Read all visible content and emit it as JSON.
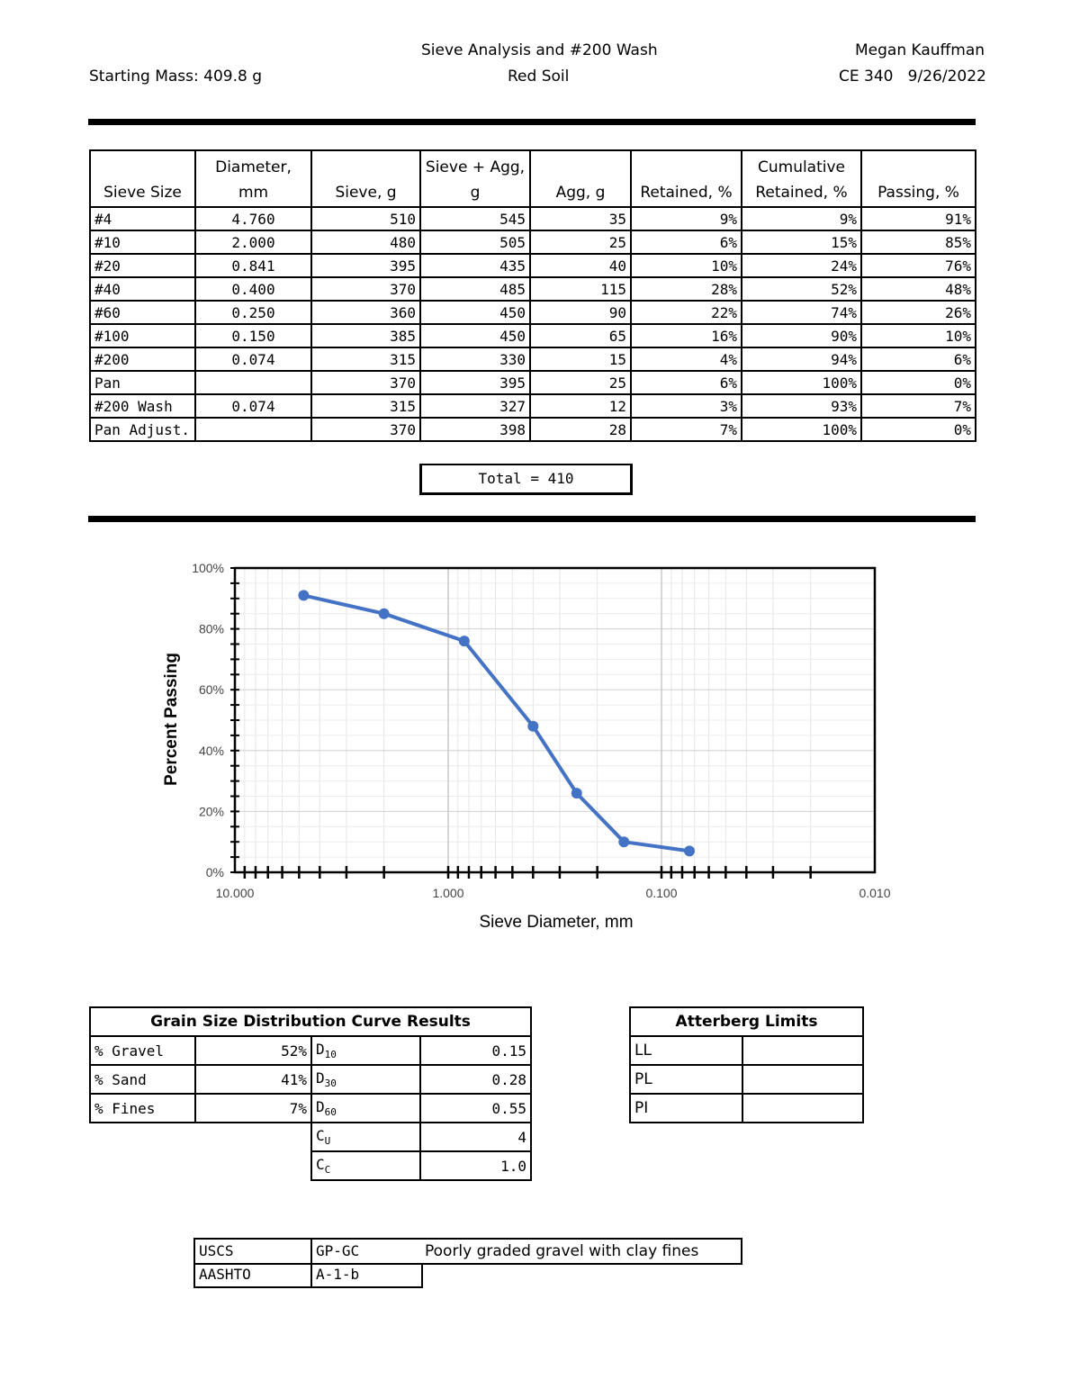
{
  "header": {
    "title_line1": "Sieve Analysis and #200 Wash",
    "title_line2": "Red Soil",
    "author": "Megan Kauffman",
    "course_date": "CE 340   9/26/2022",
    "starting_mass": "Starting Mass: 409.8 g"
  },
  "sieve_table": {
    "headers": {
      "sieve_size": "Sieve Size",
      "diameter_1": "Diameter,",
      "diameter_2": "mm",
      "sieve": "Sieve, g",
      "sieve_agg_1": "Sieve + Agg,",
      "sieve_agg_2": "g",
      "agg": "Agg, g",
      "retained": "Retained, %",
      "cum_1": "Cumulative",
      "cum_2": "Retained, %",
      "passing": "Passing, %"
    },
    "rows": [
      [
        "#4",
        "4.760",
        "510",
        "545",
        "35",
        "9%",
        "9%",
        "91%"
      ],
      [
        "#10",
        "2.000",
        "480",
        "505",
        "25",
        "6%",
        "15%",
        "85%"
      ],
      [
        "#20",
        "0.841",
        "395",
        "435",
        "40",
        "10%",
        "24%",
        "76%"
      ],
      [
        "#40",
        "0.400",
        "370",
        "485",
        "115",
        "28%",
        "52%",
        "48%"
      ],
      [
        "#60",
        "0.250",
        "360",
        "450",
        "90",
        "22%",
        "74%",
        "26%"
      ],
      [
        "#100",
        "0.150",
        "385",
        "450",
        "65",
        "16%",
        "90%",
        "10%"
      ],
      [
        "#200",
        "0.074",
        "315",
        "330",
        "15",
        "4%",
        "94%",
        "6%"
      ],
      [
        "Pan",
        "",
        "370",
        "395",
        "25",
        "6%",
        "100%",
        "0%"
      ],
      [
        "#200 Wash",
        "0.074",
        "315",
        "327",
        "12",
        "3%",
        "93%",
        "7%"
      ],
      [
        "Pan Adjust.",
        "",
        "370",
        "398",
        "28",
        "7%",
        "100%",
        "0%"
      ]
    ],
    "total": "Total = 410"
  },
  "chart_data": {
    "type": "line",
    "xlabel": "Sieve Diameter, mm",
    "ylabel": "Percent Passing",
    "x_scale": "log-reversed",
    "xlim": [
      10,
      0.01
    ],
    "ylim": [
      0,
      100
    ],
    "x_ticks": [
      "10.000",
      "1.000",
      "0.100",
      "0.010"
    ],
    "y_ticks": [
      "0%",
      "20%",
      "40%",
      "60%",
      "80%",
      "100%"
    ],
    "grid": true,
    "series": [
      {
        "color": "#4472c4",
        "x": [
          4.76,
          2.0,
          0.841,
          0.4,
          0.25,
          0.15,
          0.074
        ],
        "y": [
          91,
          85,
          76,
          48,
          26,
          10,
          7
        ]
      }
    ]
  },
  "results": {
    "title": "Grain Size Distribution Curve Results",
    "gravel_label": "% Gravel",
    "gravel": "52%",
    "sand_label": "% Sand",
    "sand": "41%",
    "fines_label": "% Fines",
    "fines": "7%",
    "d10_sub": "10",
    "d10": "0.15",
    "d30_sub": "30",
    "d30": "0.28",
    "d60_sub": "60",
    "d60": "0.55",
    "cu_sub": "U",
    "cu": "4",
    "cc_sub": "C",
    "cc": "1.0"
  },
  "atterberg": {
    "title": "Atterberg Limits",
    "ll": "LL",
    "pl": "PL",
    "pi": "PI"
  },
  "classification": {
    "uscs_label": "USCS",
    "uscs": "GP-GC",
    "uscs_desc": "Poorly graded gravel with clay fines",
    "aashto_label": "AASHTO",
    "aashto": "A-1-b"
  }
}
